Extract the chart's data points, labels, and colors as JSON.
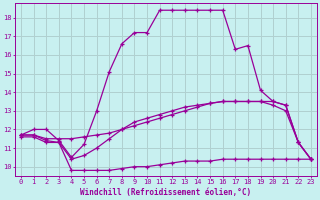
{
  "bg_color": "#c8f0f0",
  "grid_color": "#b0d0d0",
  "line_color": "#990099",
  "xlabel": "Windchill (Refroidissement éolien,°C)",
  "ylabel_ticks": [
    10,
    11,
    12,
    13,
    14,
    15,
    16,
    17,
    18
  ],
  "xlim": [
    -0.5,
    23.5
  ],
  "ylim": [
    9.5,
    18.8
  ],
  "xticks": [
    0,
    1,
    2,
    3,
    4,
    5,
    6,
    7,
    8,
    9,
    10,
    11,
    12,
    13,
    14,
    15,
    16,
    17,
    18,
    19,
    20,
    21,
    22,
    23
  ],
  "line1_x": [
    0,
    1,
    2,
    3,
    4,
    5,
    6,
    7,
    8,
    9,
    10,
    11,
    12,
    13,
    14,
    15,
    16,
    17,
    18,
    19,
    20,
    21,
    22,
    23
  ],
  "line1_y": [
    11.7,
    12.0,
    12.0,
    11.4,
    10.5,
    11.2,
    13.0,
    15.1,
    16.6,
    17.2,
    17.2,
    18.4,
    18.4,
    18.4,
    18.4,
    18.4,
    18.4,
    16.3,
    16.5,
    14.1,
    13.5,
    13.3,
    11.3,
    10.4
  ],
  "line2_x": [
    0,
    1,
    2,
    3,
    4,
    5,
    6,
    7,
    8,
    9,
    10,
    11,
    12,
    13,
    14,
    15,
    16,
    17,
    18,
    19,
    20,
    21,
    22,
    23
  ],
  "line2_y": [
    11.7,
    11.7,
    11.5,
    11.5,
    11.5,
    11.6,
    11.7,
    11.8,
    12.0,
    12.2,
    12.4,
    12.6,
    12.8,
    13.0,
    13.2,
    13.4,
    13.5,
    13.5,
    13.5,
    13.5,
    13.5,
    13.3,
    11.3,
    10.4
  ],
  "line3_x": [
    0,
    1,
    2,
    3,
    4,
    5,
    6,
    7,
    8,
    9,
    10,
    11,
    12,
    13,
    14,
    15,
    16,
    17,
    18,
    19,
    20,
    21,
    22,
    23
  ],
  "line3_y": [
    11.7,
    11.7,
    11.4,
    11.3,
    10.4,
    10.6,
    11.0,
    11.5,
    12.0,
    12.4,
    12.6,
    12.8,
    13.0,
    13.2,
    13.3,
    13.4,
    13.5,
    13.5,
    13.5,
    13.5,
    13.3,
    13.0,
    11.3,
    10.4
  ],
  "line4_x": [
    0,
    1,
    2,
    3,
    4,
    5,
    6,
    7,
    8,
    9,
    10,
    11,
    12,
    13,
    14,
    15,
    16,
    17,
    18,
    19,
    20,
    21,
    22,
    23
  ],
  "line4_y": [
    11.6,
    11.6,
    11.3,
    11.3,
    9.8,
    9.8,
    9.8,
    9.8,
    9.9,
    10.0,
    10.0,
    10.1,
    10.2,
    10.3,
    10.3,
    10.3,
    10.4,
    10.4,
    10.4,
    10.4,
    10.4,
    10.4,
    10.4,
    10.4
  ]
}
